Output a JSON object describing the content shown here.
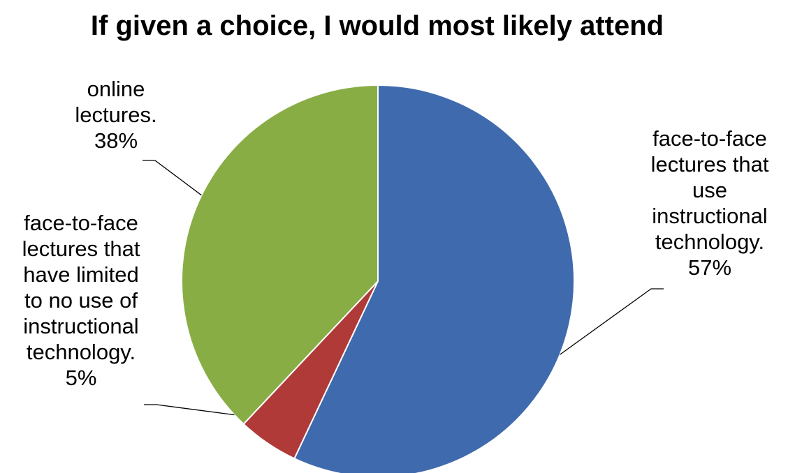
{
  "chart_data": {
    "type": "pie",
    "title": "If given a choice, I would most likely attend",
    "slices": [
      {
        "category": "face-to-face lectures that use instructional technology.",
        "label_lines": [
          "face-to-face",
          "lectures that",
          "use",
          "instructional",
          "technology."
        ],
        "value": 57,
        "value_label": "57%",
        "color": "#3F6AAD"
      },
      {
        "category": "face-to-face lectures that have limited to no use of instructional technology.",
        "label_lines": [
          "face-to-face",
          "lectures that",
          "have limited",
          "to no use of",
          "instructional",
          "technology."
        ],
        "value": 5,
        "value_label": "5%",
        "color": "#B03A38"
      },
      {
        "category": "online lectures.",
        "label_lines": [
          "online",
          "lectures."
        ],
        "value": 38,
        "value_label": "38%",
        "color": "#88AD45"
      }
    ],
    "start_angle": "12 o'clock",
    "direction": "clockwise",
    "legend": "none",
    "data_labels": "outside with leader lines"
  }
}
